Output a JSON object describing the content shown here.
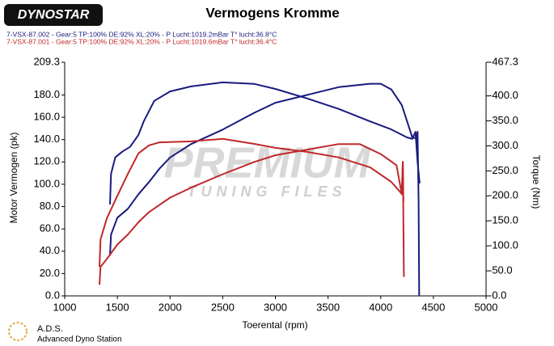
{
  "chart_data": {
    "type": "line",
    "title": "Vermogens Kromme",
    "x_label": "Toerental (rpm)",
    "y_label": "Motor Vermogen (pk)",
    "y2_label": "Torque (Nm)",
    "legend": [
      {
        "text": "7-VSX-87.002 - Gear:5 TP:100% DE:92% XL:20%   - P Lucht:1019.2mBar T° lucht:36.8°C",
        "color": "#1a1a80"
      },
      {
        "text": "7-VSX-87.001 - Gear:5 TP:100% DE:92% XL:20%   - P Lucht:1019.6mBar T° lucht:36.4°C",
        "color": "#c0282a"
      }
    ],
    "xlim": [
      1000,
      5000
    ],
    "xticks": [
      1000,
      1500,
      2000,
      2500,
      3000,
      3500,
      4000,
      4500,
      5000
    ],
    "ylim": [
      0,
      209.3
    ],
    "yticks": [
      {
        "value": 0,
        "label": "0.0"
      },
      {
        "value": 20,
        "label": "20.0"
      },
      {
        "value": 40,
        "label": "40.0"
      },
      {
        "value": 60,
        "label": "60.0"
      },
      {
        "value": 80,
        "label": "80.0"
      },
      {
        "value": 100,
        "label": "100.0"
      },
      {
        "value": 120,
        "label": "120.0"
      },
      {
        "value": 140,
        "label": "140.0"
      },
      {
        "value": 160,
        "label": "160.0"
      },
      {
        "value": 180,
        "label": "180.0"
      },
      209.3
    ],
    "y2lim": [
      0,
      467.3
    ],
    "y2ticks": [
      {
        "value": 0,
        "label": "-0.0"
      },
      {
        "value": 50,
        "label": "-50.0"
      },
      {
        "value": 100,
        "label": "-100.0"
      },
      {
        "value": 150,
        "label": "-150.0"
      },
      {
        "value": 200,
        "label": "-200.0"
      },
      {
        "value": 250,
        "label": "-250.0"
      },
      {
        "value": 300,
        "label": "-300.0"
      },
      {
        "value": 350,
        "label": "-350.0"
      },
      {
        "value": 400,
        "label": "-400.0"
      },
      {
        "value": 467.3,
        "label": "-467.3"
      }
    ],
    "series": [
      {
        "color": "#1a1a80",
        "axis": "y2",
        "x": [
          1430,
          1440,
          1480,
          1550,
          1620,
          1700,
          1750,
          1850,
          2000,
          2200,
          2500,
          2800,
          3000,
          3300,
          3600,
          3900,
          4100,
          4250,
          4300,
          4330,
          4350,
          4370
        ],
        "values": [
          183,
          244,
          277,
          289,
          298,
          322,
          349,
          390,
          409,
          419,
          427,
          424,
          414,
          395,
          374,
          349,
          333,
          317,
          314,
          328,
          268,
          225
        ]
      },
      {
        "color": "#1a1a80",
        "x": [
          1430,
          1440,
          1500,
          1600,
          1700,
          1800,
          1900,
          2000,
          2200,
          2500,
          2800,
          3000,
          3300,
          3600,
          3900,
          4000,
          4100,
          4200,
          4300,
          4340,
          4350,
          4360,
          4365
        ],
        "values": [
          36,
          55,
          70,
          78,
          91,
          102,
          114,
          124,
          136,
          149,
          164,
          173,
          180,
          187,
          190,
          190,
          185,
          171,
          142,
          141,
          147,
          84,
          0
        ]
      },
      {
        "color": "#c0282a",
        "axis": "y2",
        "x": [
          1330,
          1340,
          1400,
          1500,
          1600,
          1700,
          1800,
          1900,
          2200,
          2500,
          2800,
          3000,
          3300,
          3600,
          3900,
          4100,
          4200,
          4210,
          4215
        ],
        "values": [
          58,
          113,
          155,
          200,
          244,
          285,
          301,
          307,
          309,
          314,
          304,
          296,
          288,
          277,
          257,
          228,
          204,
          268,
          188
        ]
      },
      {
        "color": "#c0282a",
        "x": [
          1330,
          1340,
          1400,
          1500,
          1600,
          1700,
          1800,
          2000,
          2200,
          2500,
          2800,
          3000,
          3300,
          3600,
          3800,
          4000,
          4150,
          4200,
          4210,
          4220
        ],
        "values": [
          10,
          26,
          33,
          46,
          55,
          66,
          75,
          88,
          97,
          109,
          120,
          126,
          131,
          136,
          136,
          127,
          117,
          91,
          120,
          17
        ]
      }
    ]
  },
  "branding": {
    "logo": "DYNOSTAR",
    "watermark": "PREMIUM",
    "watermark_sub": "TUNING FILES",
    "footer_title": "A.D.S.",
    "footer_sub": "Advanced Dyno Station"
  }
}
